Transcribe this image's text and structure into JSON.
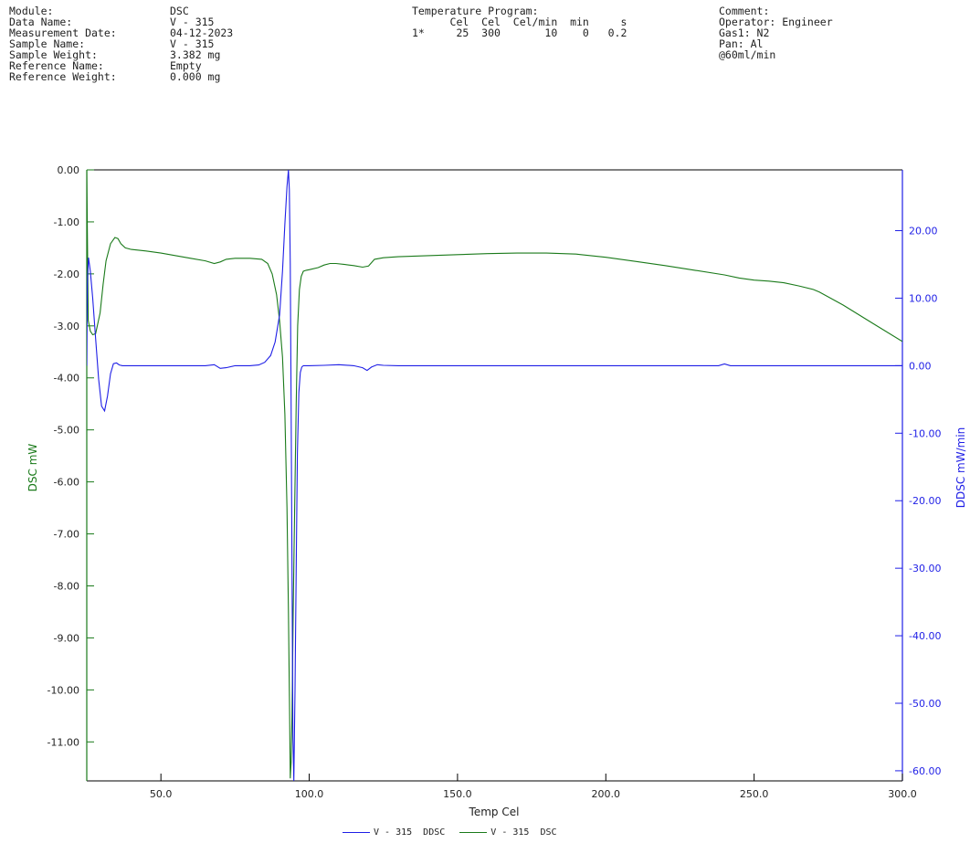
{
  "header": {
    "info": [
      {
        "label": "Module:",
        "value": "DSC"
      },
      {
        "label": "Data Name:",
        "value": "V - 315"
      },
      {
        "label": "Measurement Date:",
        "value": "04-12-2023"
      },
      {
        "label": "Sample Name:",
        "value": "V - 315"
      },
      {
        "label": "Sample Weight:",
        "value": "3.382 mg"
      },
      {
        "label": "Reference Name:",
        "value": "Empty"
      },
      {
        "label": "Reference Weight:",
        "value": "0.000 mg"
      }
    ],
    "program": {
      "title": "Temperature Program:",
      "columns": "      Cel  Cel  Cel/min  min     s",
      "row": "1*     25  300       10    0   0.2"
    },
    "comment": [
      "Comment:",
      "Operator: Engineer",
      "Gas1: N2",
      "Pan: Al",
      "@60ml/min"
    ]
  },
  "chart_data": {
    "type": "line",
    "xlabel": "Temp Cel",
    "ylabel_left": "DSC mW",
    "ylabel_right": "DDSC mW/min",
    "xlim": [
      25,
      300
    ],
    "ylim_left": [
      -11.75,
      0.0
    ],
    "ylim_right": [
      -61.5,
      29.0
    ],
    "x_ticks": [
      "50.0",
      "100.0",
      "150.0",
      "200.0",
      "250.0",
      "300.0"
    ],
    "y_left_ticks": [
      "0.00",
      "-1.00",
      "-2.00",
      "-3.00",
      "-4.00",
      "-5.00",
      "-6.00",
      "-7.00",
      "-8.00",
      "-9.00",
      "-10.00",
      "-11.00"
    ],
    "y_right_ticks": [
      "20.00",
      "10.00",
      "0.00",
      "-10.00",
      "-20.00",
      "-30.00",
      "-40.00",
      "-50.00",
      "-60.00"
    ],
    "grid": false,
    "legend_position": "bottom-center",
    "series": [
      {
        "name": "V - 315  DSC",
        "axis": "left",
        "color": "#1a7a1a",
        "x": [
          25,
          25.5,
          26.2,
          27,
          28,
          29.5,
          30.5,
          31.5,
          33,
          34.5,
          35.5,
          36.5,
          38,
          40,
          45,
          50,
          55,
          60,
          65,
          68,
          70,
          72,
          75,
          80,
          84,
          86,
          87.5,
          89,
          90,
          91,
          91.8,
          92.5,
          93,
          93.4,
          93.6,
          93.9,
          94.2,
          94.6,
          95.1,
          95.6,
          96.1,
          96.7,
          97.3,
          98,
          99,
          100,
          103,
          105,
          107,
          109,
          112,
          115,
          118,
          120,
          122,
          125,
          130,
          140,
          150,
          160,
          170,
          180,
          190,
          200,
          210,
          220,
          230,
          240,
          245,
          250,
          255,
          260,
          265,
          270,
          272,
          280,
          290,
          300
        ],
        "y": [
          0.0,
          -2.9,
          -3.1,
          -3.17,
          -3.15,
          -2.75,
          -2.2,
          -1.75,
          -1.42,
          -1.3,
          -1.32,
          -1.42,
          -1.5,
          -1.53,
          -1.56,
          -1.6,
          -1.65,
          -1.7,
          -1.75,
          -1.8,
          -1.77,
          -1.72,
          -1.7,
          -1.7,
          -1.72,
          -1.8,
          -2.0,
          -2.4,
          -2.9,
          -3.6,
          -4.7,
          -6.5,
          -8.5,
          -10.5,
          -11.7,
          -11.4,
          -10.5,
          -8.5,
          -6.5,
          -4.5,
          -3.0,
          -2.3,
          -2.05,
          -1.95,
          -1.93,
          -1.92,
          -1.88,
          -1.83,
          -1.8,
          -1.8,
          -1.82,
          -1.84,
          -1.87,
          -1.85,
          -1.72,
          -1.69,
          -1.67,
          -1.65,
          -1.63,
          -1.61,
          -1.6,
          -1.6,
          -1.62,
          -1.68,
          -1.76,
          -1.84,
          -1.93,
          -2.02,
          -2.08,
          -2.12,
          -2.14,
          -2.17,
          -2.23,
          -2.3,
          -2.35,
          -2.6,
          -2.95,
          -3.3
        ]
      },
      {
        "name": "V - 315  DDSC",
        "axis": "right",
        "color": "#1f1fe6",
        "x": [
          25,
          25.2,
          25.6,
          26.2,
          27,
          28,
          29,
          30,
          31,
          32,
          33,
          34,
          35,
          36,
          37,
          40,
          45,
          50,
          55,
          60,
          65,
          68,
          70,
          72,
          75,
          80,
          83,
          85,
          87,
          88.5,
          90,
          91,
          91.8,
          92.5,
          93,
          93.3,
          93.6,
          93.9,
          94.2,
          94.5,
          94.8,
          95.2,
          95.6,
          96,
          96.5,
          97,
          97.5,
          98,
          99,
          100,
          105,
          110,
          115,
          118,
          119.5,
          121,
          123,
          125,
          130,
          140,
          150,
          170,
          200,
          220,
          238,
          240,
          242,
          260,
          280,
          300
        ],
        "y": [
          0.0,
          12.0,
          16.0,
          14.0,
          10.0,
          4.0,
          -2.0,
          -6.0,
          -6.7,
          -4.5,
          -1.2,
          0.3,
          0.4,
          0.1,
          0.0,
          0.0,
          0.0,
          0.0,
          0.0,
          0.0,
          0.0,
          0.15,
          -0.4,
          -0.3,
          0.0,
          0.0,
          0.1,
          0.5,
          1.5,
          3.5,
          7.5,
          14.0,
          21.0,
          26.5,
          29.0,
          26.0,
          15.0,
          -5.0,
          -30.0,
          -55.0,
          -61.5,
          -48.0,
          -30.0,
          -13.0,
          -4.0,
          -1.0,
          -0.2,
          0.0,
          0.0,
          0.0,
          0.05,
          0.15,
          0.0,
          -0.3,
          -0.7,
          -0.2,
          0.15,
          0.05,
          0.0,
          0.0,
          0.0,
          0.0,
          0.0,
          0.0,
          0.0,
          0.25,
          0.0,
          0.0,
          0.0,
          0.0
        ]
      }
    ]
  }
}
